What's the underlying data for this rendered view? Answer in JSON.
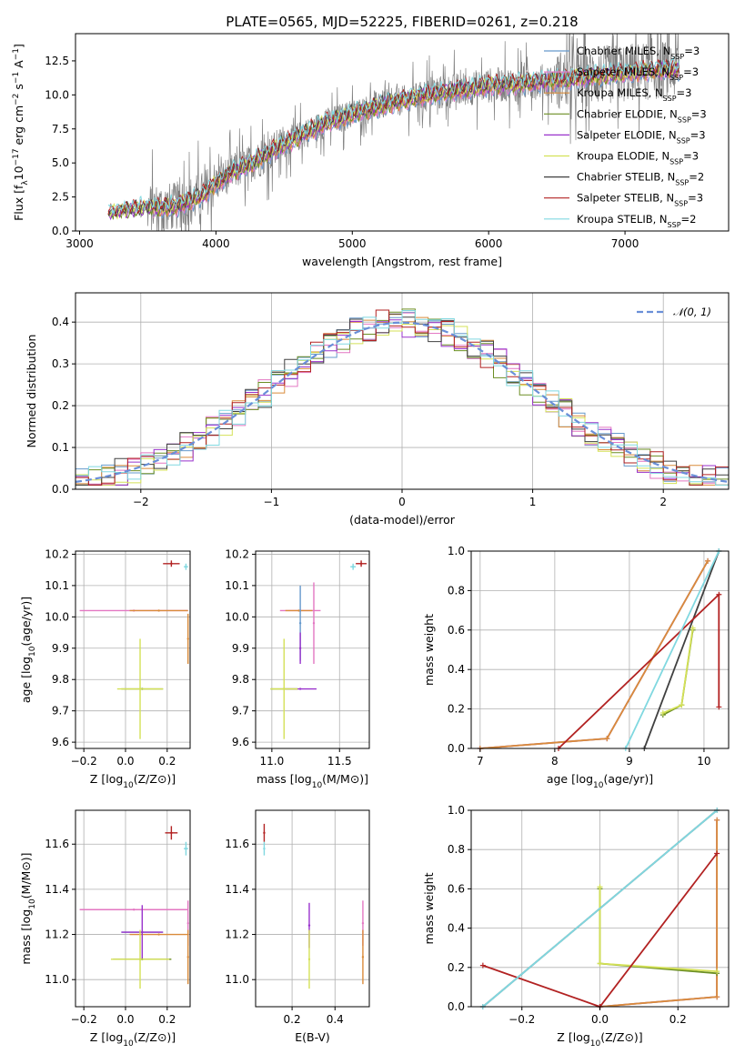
{
  "colors": {
    "Chabrier MILES": "#6699cc",
    "Salpeter MILES": "#e377c2",
    "Kroupa MILES": "#d98b3a",
    "Chabrier ELODIE": "#6b8e23",
    "Salpeter ELODIE": "#9932cc",
    "Kroupa ELODIE": "#d4e157",
    "Chabrier STELIB": "#404040",
    "Salpeter STELIB": "#b22222",
    "Kroupa STELIB": "#80d8e0",
    "gauss": "#6a8fd8",
    "data": "#808080"
  },
  "chart_data": [
    {
      "id": "spectrum",
      "type": "line",
      "title": "PLATE=0565, MJD=52225, FIBERID=0261, z=0.218",
      "xlabel": "wavelength [Angstrom, rest frame]",
      "ylabel": "Flux [f_λ 10^-17 erg cm^-2 s^-1 A^-1]",
      "xlim": [
        2970,
        7760
      ],
      "ylim": [
        0,
        14.5
      ],
      "xticks": [
        "3000",
        "4000",
        "5000",
        "6000",
        "7000"
      ],
      "yticks": [
        "0.0",
        "2.5",
        "5.0",
        "7.5",
        "10.0",
        "12.5"
      ],
      "grid": false,
      "legend_position": "upper-right",
      "legend": [
        {
          "label": "Chabrier MILES, N",
          "sub": "SSP",
          "suffix": "=3",
          "key": "Chabrier MILES"
        },
        {
          "label": "Salpeter MILES, N",
          "sub": "SSP",
          "suffix": "=3",
          "key": "Salpeter MILES"
        },
        {
          "label": "Kroupa MILES, N",
          "sub": "SSP",
          "suffix": "=3",
          "key": "Kroupa MILES"
        },
        {
          "label": "Chabrier ELODIE, N",
          "sub": "SSP",
          "suffix": "=3",
          "key": "Chabrier ELODIE"
        },
        {
          "label": "Salpeter ELODIE, N",
          "sub": "SSP",
          "suffix": "=3",
          "key": "Salpeter ELODIE"
        },
        {
          "label": "Kroupa ELODIE, N",
          "sub": "SSP",
          "suffix": "=3",
          "key": "Kroupa ELODIE"
        },
        {
          "label": "Chabrier STELIB, N",
          "sub": "SSP",
          "suffix": "=2",
          "key": "Chabrier STELIB"
        },
        {
          "label": "Salpeter STELIB, N",
          "sub": "SSP",
          "suffix": "=3",
          "key": "Salpeter STELIB"
        },
        {
          "label": "Kroupa STELIB, N",
          "sub": "SSP",
          "suffix": "=2",
          "key": "Kroupa STELIB"
        }
      ],
      "continuum": {
        "x": [
          3210,
          3500,
          3700,
          3900,
          4000,
          4100,
          4300,
          4500,
          4800,
          5000,
          5200,
          5500,
          5800,
          6000,
          6200,
          6500,
          6800,
          7000,
          7200,
          7400
        ],
        "y": [
          1.3,
          1.7,
          1.8,
          2.6,
          3.5,
          4.2,
          5.2,
          6.4,
          7.9,
          8.6,
          9.2,
          9.9,
          10.4,
          10.7,
          10.8,
          11.1,
          11.4,
          11.6,
          11.8,
          11.9
        ]
      }
    },
    {
      "id": "residuals",
      "type": "histogram",
      "xlabel": "(data-model)/error",
      "ylabel": "Normed distribution",
      "xlim": [
        -2.5,
        2.5
      ],
      "ylim": [
        0,
        0.47
      ],
      "xticks": [
        "−2",
        "−1",
        "0",
        "1",
        "2"
      ],
      "yticks": [
        "0.0",
        "0.1",
        "0.2",
        "0.3",
        "0.4"
      ],
      "grid": true,
      "legend_position": "upper-right",
      "legend": [
        {
          "label": "𝒩(0, 1)",
          "key": "gauss"
        }
      ],
      "bins": 50
    },
    {
      "id": "age-vs-Z",
      "type": "scatter",
      "xlabel": "Z [log10(Z/Z⊙)]",
      "ylabel": "age [log10(age/yr)]",
      "xlim": [
        -0.24,
        0.31
      ],
      "ylim": [
        9.58,
        10.21
      ],
      "xticks": [
        "−0.2",
        "0.0",
        "0.2"
      ],
      "yticks": [
        "9.6",
        "9.7",
        "9.8",
        "9.9",
        "10.0",
        "10.1",
        "10.2"
      ],
      "grid": true,
      "points": [
        {
          "key": "Salpeter MILES",
          "x": 0.04,
          "y": 10.02,
          "dx": 0.26,
          "dy": 0.002
        },
        {
          "key": "Kroupa MILES",
          "x": 0.16,
          "y": 10.02,
          "dx": 0.14,
          "dy": 0.002
        },
        {
          "key": "Kroupa MILES",
          "x": 0.3,
          "y": 9.93,
          "dx": 0.002,
          "dy": 0.08
        },
        {
          "key": "Chabrier ELODIE",
          "x": 0.08,
          "y": 9.77,
          "dx": 0.1,
          "dy": 0.002
        },
        {
          "key": "Kroupa ELODIE",
          "x": 0.07,
          "y": 9.77,
          "dx": 0.11,
          "dy": 0.16
        },
        {
          "key": "Salpeter STELIB",
          "x": 0.22,
          "y": 10.17,
          "dx": 0.04,
          "dy": 0.01
        },
        {
          "key": "Kroupa STELIB",
          "x": 0.29,
          "y": 10.16,
          "dx": 0.01,
          "dy": 0.01
        }
      ]
    },
    {
      "id": "age-vs-mass",
      "type": "scatter",
      "xlabel": "mass [log10(M/M⊙)]",
      "ylabel": "",
      "xlim": [
        10.88,
        11.72
      ],
      "ylim": [
        9.58,
        10.21
      ],
      "xticks": [
        "11.0",
        "11.5"
      ],
      "yticks": [
        "9.6",
        "9.7",
        "9.8",
        "9.9",
        "10.0",
        "10.1",
        "10.2"
      ],
      "grid": true,
      "points": [
        {
          "key": "Salpeter MILES",
          "x": 11.21,
          "y": 10.02,
          "dx": 0.15,
          "dy": 0.002
        },
        {
          "key": "Salpeter MILES",
          "x": 11.31,
          "y": 9.98,
          "dx": 0.002,
          "dy": 0.13
        },
        {
          "key": "Kroupa MILES",
          "x": 11.2,
          "y": 10.02,
          "dx": 0.1,
          "dy": 0.002
        },
        {
          "key": "Chabrier MILES",
          "x": 11.21,
          "y": 9.98,
          "dx": 0.002,
          "dy": 0.12
        },
        {
          "key": "Salpeter ELODIE",
          "x": 11.21,
          "y": 9.77,
          "dx": 0.12,
          "dy": 0.002
        },
        {
          "key": "Salpeter ELODIE",
          "x": 11.21,
          "y": 9.9,
          "dx": 0.002,
          "dy": 0.05
        },
        {
          "key": "Chabrier ELODIE",
          "x": 11.09,
          "y": 9.77,
          "dx": 0.1,
          "dy": 0.002
        },
        {
          "key": "Kroupa ELODIE",
          "x": 11.09,
          "y": 9.77,
          "dx": 0.1,
          "dy": 0.16
        },
        {
          "key": "Salpeter STELIB",
          "x": 11.66,
          "y": 10.17,
          "dx": 0.04,
          "dy": 0.01
        },
        {
          "key": "Kroupa STELIB",
          "x": 11.6,
          "y": 10.16,
          "dx": 0.02,
          "dy": 0.01
        }
      ]
    },
    {
      "id": "massweight-vs-age",
      "type": "line",
      "xlabel": "age [log10(age/yr)]",
      "ylabel": "mass weight",
      "xlim": [
        6.88,
        10.33
      ],
      "ylim": [
        0,
        1
      ],
      "xticks": [
        "7",
        "8",
        "9",
        "10"
      ],
      "yticks": [
        "0.0",
        "0.2",
        "0.4",
        "0.6",
        "0.8",
        "1.0"
      ],
      "grid": true,
      "series": [
        {
          "key": "Chabrier MILES",
          "x": [
            7.0,
            8.7,
            10.05
          ],
          "y": [
            0.0,
            0.05,
            0.95
          ]
        },
        {
          "key": "Salpeter MILES",
          "x": [
            7.0,
            8.7,
            10.05
          ],
          "y": [
            0.0,
            0.05,
            0.95
          ]
        },
        {
          "key": "Kroupa MILES",
          "x": [
            7.0,
            8.7,
            10.05
          ],
          "y": [
            0.0,
            0.05,
            0.95
          ]
        },
        {
          "key": "Chabrier ELODIE",
          "x": [
            9.45,
            9.7,
            9.85
          ],
          "y": [
            0.17,
            0.22,
            0.6
          ]
        },
        {
          "key": "Kroupa ELODIE",
          "x": [
            9.45,
            9.7,
            9.85
          ],
          "y": [
            0.18,
            0.22,
            0.61
          ]
        },
        {
          "key": "Chabrier STELIB",
          "x": [
            9.2,
            10.2
          ],
          "y": [
            0.0,
            1.0
          ]
        },
        {
          "key": "Salpeter STELIB",
          "x": [
            8.05,
            10.2,
            10.2
          ],
          "y": [
            0.0,
            0.78,
            0.21
          ]
        },
        {
          "key": "Kroupa STELIB",
          "x": [
            8.95,
            10.2
          ],
          "y": [
            0.0,
            1.0
          ]
        }
      ]
    },
    {
      "id": "mass-vs-Z",
      "type": "scatter",
      "xlabel": "Z [log10(Z/Z⊙)]",
      "ylabel": "mass [log10(M/M⊙)]",
      "xlim": [
        -0.24,
        0.31
      ],
      "ylim": [
        10.88,
        11.75
      ],
      "xticks": [
        "−0.2",
        "0.0",
        "0.2"
      ],
      "yticks": [
        "11.0",
        "11.2",
        "11.4",
        "11.6"
      ],
      "grid": true,
      "points": [
        {
          "key": "Salpeter MILES",
          "x": 0.04,
          "y": 11.31,
          "dx": 0.26,
          "dy": 0.002
        },
        {
          "key": "Salpeter MILES",
          "x": 0.3,
          "y": 11.25,
          "dx": 0.002,
          "dy": 0.1
        },
        {
          "key": "Kroupa MILES",
          "x": 0.16,
          "y": 11.2,
          "dx": 0.14,
          "dy": 0.002
        },
        {
          "key": "Kroupa MILES",
          "x": 0.3,
          "y": 11.1,
          "dx": 0.002,
          "dy": 0.12
        },
        {
          "key": "Chabrier MILES",
          "x": 0.08,
          "y": 11.21,
          "dx": 0.1,
          "dy": 0.002
        },
        {
          "key": "Salpeter ELODIE",
          "x": 0.08,
          "y": 11.21,
          "dx": 0.1,
          "dy": 0.12
        },
        {
          "key": "Chabrier ELODIE",
          "x": 0.08,
          "y": 11.09,
          "dx": 0.14,
          "dy": 0.002
        },
        {
          "key": "Kroupa ELODIE",
          "x": 0.07,
          "y": 11.09,
          "dx": 0.14,
          "dy": 0.13
        },
        {
          "key": "Salpeter STELIB",
          "x": 0.22,
          "y": 11.65,
          "dx": 0.03,
          "dy": 0.03
        },
        {
          "key": "Kroupa STELIB",
          "x": 0.29,
          "y": 11.58,
          "dx": 0.01,
          "dy": 0.03
        }
      ]
    },
    {
      "id": "mass-vs-ebv",
      "type": "scatter",
      "xlabel": "E(B-V)",
      "ylabel": "",
      "xlim": [
        0.03,
        0.56
      ],
      "ylim": [
        10.88,
        11.75
      ],
      "xticks": [
        "0.2",
        "0.4"
      ],
      "yticks": [
        "11.0",
        "11.2",
        "11.4",
        "11.6"
      ],
      "grid": true,
      "points": [
        {
          "key": "Salpeter ELODIE",
          "x": 0.28,
          "y": 11.24,
          "dx": 0.0,
          "dy": 0.1
        },
        {
          "key": "Kroupa ELODIE",
          "x": 0.28,
          "y": 11.09,
          "dx": 0.0,
          "dy": 0.13
        },
        {
          "key": "Salpeter MILES",
          "x": 0.53,
          "y": 11.25,
          "dx": 0.0,
          "dy": 0.1
        },
        {
          "key": "Kroupa MILES",
          "x": 0.53,
          "y": 11.1,
          "dx": 0.0,
          "dy": 0.12
        },
        {
          "key": "Salpeter STELIB",
          "x": 0.07,
          "y": 11.65,
          "dx": 0.0,
          "dy": 0.04
        },
        {
          "key": "Kroupa STELIB",
          "x": 0.07,
          "y": 11.58,
          "dx": 0.0,
          "dy": 0.03
        }
      ]
    },
    {
      "id": "massweight-vs-Z",
      "type": "line",
      "xlabel": "Z [log10(Z/Z⊙)]",
      "ylabel": "mass weight",
      "xlim": [
        -0.33,
        0.33
      ],
      "ylim": [
        0,
        1
      ],
      "xticks": [
        "−0.2",
        "0.0",
        "0.2"
      ],
      "yticks": [
        "0.0",
        "0.2",
        "0.4",
        "0.6",
        "0.8",
        "1.0"
      ],
      "grid": true,
      "series": [
        {
          "key": "Chabrier MILES",
          "x": [
            0.0,
            0.3,
            0.3
          ],
          "y": [
            0.0,
            0.05,
            0.95
          ]
        },
        {
          "key": "Salpeter MILES",
          "x": [
            0.0,
            0.3,
            0.3
          ],
          "y": [
            0.0,
            0.05,
            0.95
          ]
        },
        {
          "key": "Kroupa MILES",
          "x": [
            0.0,
            0.3,
            0.3
          ],
          "y": [
            0.0,
            0.05,
            0.95
          ]
        },
        {
          "key": "Chabrier ELODIE",
          "x": [
            0.0,
            0.0,
            0.3
          ],
          "y": [
            0.6,
            0.22,
            0.17
          ]
        },
        {
          "key": "Kroupa ELODIE",
          "x": [
            0.0,
            0.0,
            0.3
          ],
          "y": [
            0.61,
            0.22,
            0.18
          ]
        },
        {
          "key": "Chabrier STELIB",
          "x": [
            -0.3,
            0.3
          ],
          "y": [
            0.0,
            1.0
          ]
        },
        {
          "key": "Salpeter STELIB",
          "x": [
            -0.3,
            0.0,
            0.3
          ],
          "y": [
            0.21,
            0.0,
            0.78
          ]
        },
        {
          "key": "Kroupa STELIB",
          "x": [
            -0.3,
            0.3
          ],
          "y": [
            0.0,
            1.0
          ]
        }
      ]
    }
  ]
}
